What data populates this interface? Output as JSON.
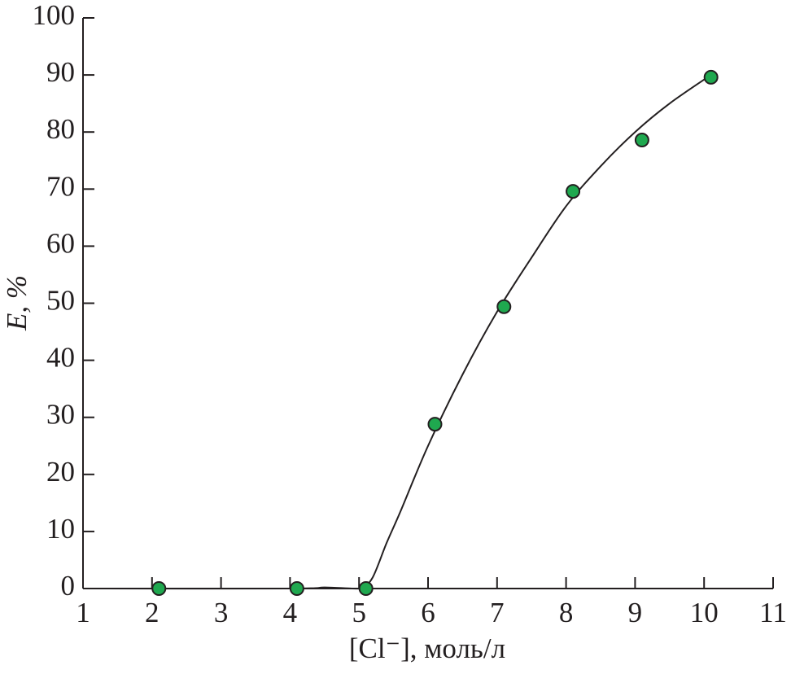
{
  "chart_data": {
    "type": "scatter",
    "x_label": "[Cl⁻], моль/л",
    "y_label": "E, %",
    "points": {
      "color": "#1fa84f",
      "x": [
        2.1,
        4.1,
        5.1,
        6.1,
        7.1,
        8.1,
        9.1,
        10.1
      ],
      "values": [
        0,
        0,
        0,
        28.8,
        49.4,
        69.6,
        78.6,
        89.6
      ]
    },
    "curve": {
      "color": "#231f20",
      "x": [
        1,
        4.0,
        4.5,
        4.9,
        5.05,
        5.2,
        5.4,
        5.6,
        6.0,
        6.5,
        7.0,
        7.5,
        8.0,
        8.5,
        9.0,
        9.5,
        10.1
      ],
      "values": [
        0,
        0,
        0.2,
        0,
        0.2,
        2,
        8,
        13.5,
        25,
        37.5,
        48.5,
        58,
        67,
        74,
        80,
        85,
        90
      ]
    },
    "xlim": [
      1,
      11
    ],
    "xticks": [
      1,
      2,
      3,
      4,
      5,
      6,
      7,
      8,
      9,
      10,
      11
    ],
    "ylim": [
      0,
      100
    ],
    "yticks": [
      0,
      10,
      20,
      30,
      40,
      50,
      60,
      70,
      80,
      90,
      100
    ]
  }
}
